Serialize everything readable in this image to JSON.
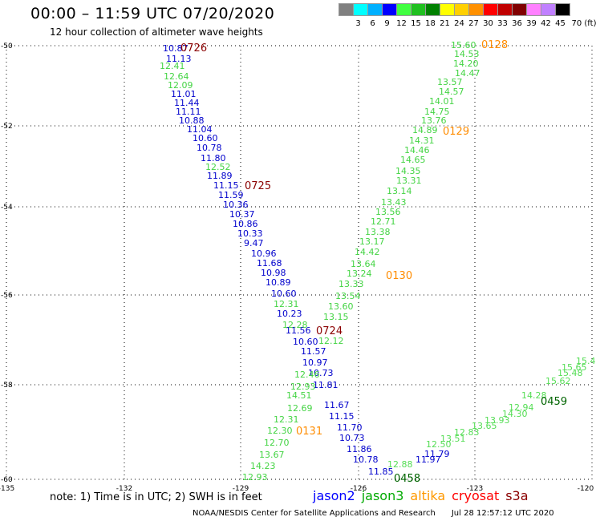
{
  "header": {
    "title": "00:00 – 11:59 UTC 07/20/2020",
    "subtitle": "12 hour collection of altimeter wave heights"
  },
  "color_scale": {
    "labels": [
      "3",
      "6",
      "9",
      "12",
      "15",
      "18",
      "21",
      "24",
      "27",
      "30",
      "33",
      "36",
      "39",
      "42",
      "45",
      "70 (ft)"
    ],
    "colors": [
      "#808080",
      "#00ffff",
      "#00b0ff",
      "#0000ff",
      "#40ff40",
      "#20c020",
      "#008000",
      "#ffff00",
      "#ffd000",
      "#ff9000",
      "#ff0000",
      "#c00000",
      "#800000",
      "#ff80ff",
      "#c080ff",
      "#000000"
    ]
  },
  "axes": {
    "lon_ticks": [
      "-135",
      "-132",
      "-129",
      "-126",
      "-123",
      "-120"
    ],
    "lat_ticks": [
      "-50",
      "-52",
      "-54",
      "-56",
      "-58",
      "-60"
    ]
  },
  "tracks": {
    "jason2_a": {
      "color": "#0000cc",
      "values": [
        "10.87",
        "11.13",
        "11.01",
        "11.44",
        "11.11",
        "10.88",
        "11.04",
        "10.60",
        "10.78",
        "11.80",
        "11.89",
        "11.15",
        "11.59",
        "10.36",
        "10.37",
        "10.86",
        "10.33",
        "9.47",
        "10.96",
        "11.68",
        "10.98",
        "10.89",
        "10.60",
        "10.23",
        "11.56",
        "10.60",
        "11.57",
        "10.97",
        "10.73",
        "11.81",
        "11.67",
        "11.15",
        "11.70",
        "10.73",
        "11.86",
        "10.78",
        "11.85",
        "11.97",
        "11.79"
      ]
    },
    "jason3_a": {
      "color": "#44d444",
      "values": [
        "12.41",
        "12.64",
        "12.09",
        "12.52",
        "12.31",
        "12.28",
        "12.12",
        "12.46",
        "12.93",
        "14.51",
        "12.69",
        "12.31",
        "12.30",
        "12.70",
        "13.67",
        "14.23",
        "12.93"
      ]
    },
    "jason3_b": {
      "color": "#44d444",
      "values": [
        "15.60",
        "14.53",
        "14.20",
        "14.47",
        "13.57",
        "14.57",
        "14.01",
        "14.75",
        "13.76",
        "14.89",
        "14.31",
        "14.46",
        "14.65",
        "14.35",
        "13.31",
        "13.14",
        "13.43",
        "13.56",
        "12.71",
        "13.38",
        "13.17",
        "14.42",
        "13.64",
        "13.24",
        "13.33",
        "13.54",
        "13.60",
        "13.15"
      ]
    },
    "jason3_c": {
      "color": "#44d444",
      "values": [
        "12.88",
        "12.50",
        "13.51",
        "12.83",
        "13.65",
        "13.93",
        "14.30",
        "12.94",
        "14.28",
        "15.62",
        "15.48",
        "15.65",
        "15.4"
      ]
    },
    "time_labels": [
      {
        "text": "0726",
        "color": "#8b0000"
      },
      {
        "text": "0725",
        "color": "#8b0000"
      },
      {
        "text": "0724",
        "color": "#8b0000"
      },
      {
        "text": "0128",
        "color": "#ff8c00"
      },
      {
        "text": "0129",
        "color": "#ff8c00"
      },
      {
        "text": "0130",
        "color": "#ff8c00"
      },
      {
        "text": "0131",
        "color": "#ff8c00"
      },
      {
        "text": "0458",
        "color": "#006400"
      },
      {
        "text": "0459",
        "color": "#006400"
      }
    ]
  },
  "footer": {
    "note": "note:  1) Time is in UTC;  2) SWH is in feet",
    "legend": [
      {
        "name": "jason2",
        "color": "#0000ff"
      },
      {
        "name": "jason3",
        "color": "#00aa00"
      },
      {
        "name": "altika",
        "color": "#ff9900"
      },
      {
        "name": "cryosat",
        "color": "#ff0000"
      },
      {
        "name": "s3a",
        "color": "#8b0000"
      }
    ],
    "credit": "NOAA/NESDIS Center for Satellite Applications and Research",
    "timestamp": "Jul 28 12:57:12 UTC 2020"
  }
}
